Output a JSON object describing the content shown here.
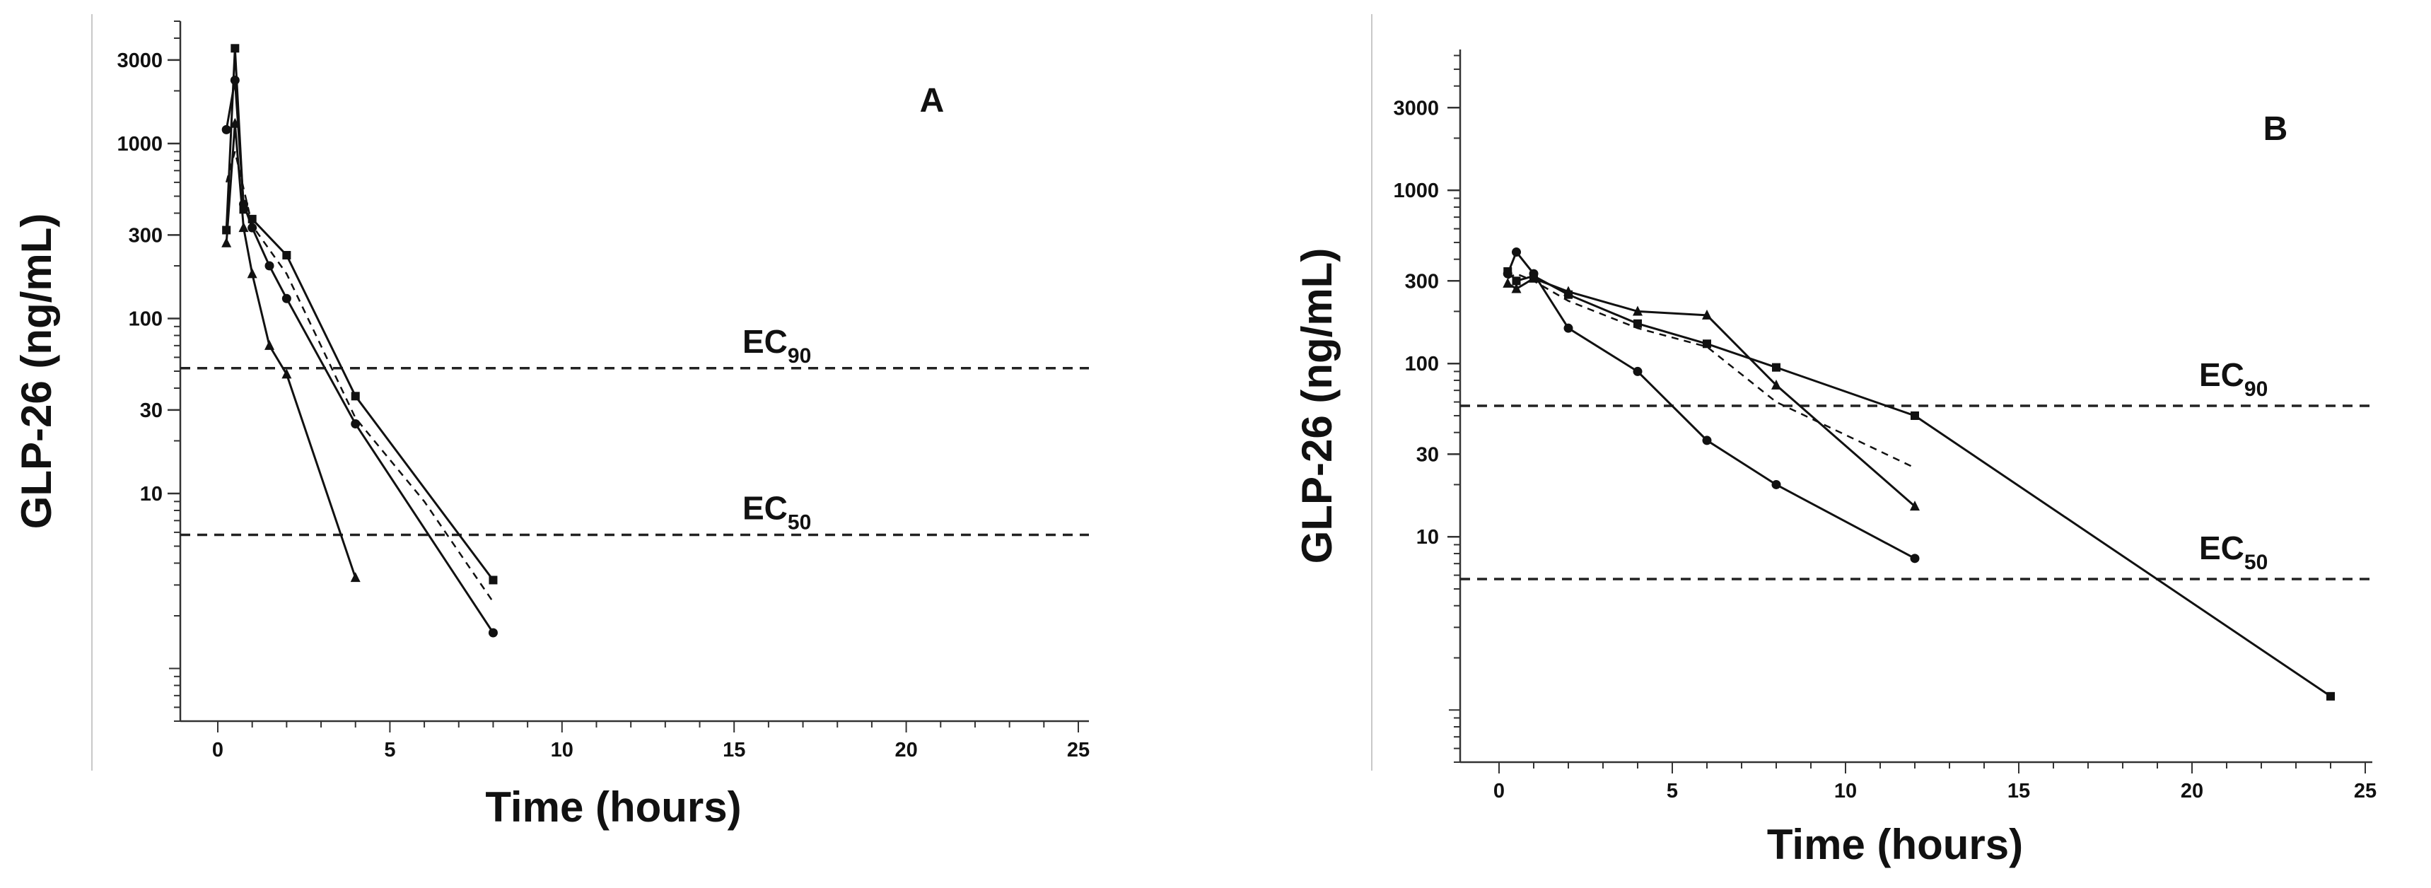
{
  "chart_data": [
    {
      "type": "line",
      "panel_label": "A",
      "xlabel": "Time (hours)",
      "ylabel": "GLP-26 (ng/mL)",
      "x_ticks": [
        0,
        5,
        10,
        15,
        20,
        25
      ],
      "y_ticks": [
        10,
        30,
        100,
        300,
        1000,
        3000
      ],
      "y_scale": "log",
      "xlim": [
        -1,
        25
      ],
      "ylim": [
        0.5,
        5000
      ],
      "grid": false,
      "reference_lines": [
        {
          "label": "EC",
          "subscript": "90",
          "value": 52
        },
        {
          "label": "EC",
          "subscript": "50",
          "value": 5.8
        }
      ],
      "series": [
        {
          "marker": "square",
          "dash": false,
          "points": [
            [
              0.25,
              320
            ],
            [
              0.5,
              3500
            ],
            [
              0.75,
              420
            ],
            [
              1,
              370
            ],
            [
              2,
              230
            ],
            [
              4,
              36
            ],
            [
              8,
              3.2
            ]
          ]
        },
        {
          "marker": "circle",
          "dash": false,
          "points": [
            [
              0.25,
              1200
            ],
            [
              0.5,
              2300
            ],
            [
              0.75,
              450
            ],
            [
              1,
              330
            ],
            [
              1.5,
              200
            ],
            [
              2,
              130
            ],
            [
              4,
              25
            ],
            [
              8,
              1.6
            ]
          ]
        },
        {
          "marker": "triangle",
          "dash": false,
          "points": [
            [
              0.25,
              270
            ],
            [
              0.5,
              1300
            ],
            [
              0.75,
              330
            ],
            [
              1,
              180
            ],
            [
              1.5,
              70
            ],
            [
              2,
              48
            ],
            [
              4,
              3.3
            ]
          ]
        },
        {
          "marker": "none",
          "dash": true,
          "points": [
            [
              0.25,
              600
            ],
            [
              0.5,
              900
            ],
            [
              1,
              340
            ],
            [
              2,
              180
            ],
            [
              4,
              27
            ],
            [
              6,
              9
            ],
            [
              8,
              2.4
            ]
          ]
        }
      ]
    },
    {
      "type": "line",
      "panel_label": "B",
      "xlabel": "Time (hours)",
      "ylabel": "GLP-26 (ng/mL)",
      "x_ticks": [
        0,
        5,
        10,
        15,
        20,
        25
      ],
      "y_ticks": [
        10,
        30,
        100,
        300,
        1000,
        3000
      ],
      "y_scale": "log",
      "xlim": [
        -1,
        25
      ],
      "ylim": [
        0.5,
        6500
      ],
      "grid": false,
      "reference_lines": [
        {
          "label": "EC",
          "subscript": "90",
          "value": 57
        },
        {
          "label": "EC",
          "subscript": "50",
          "value": 5.7
        }
      ],
      "series": [
        {
          "marker": "square",
          "dash": false,
          "points": [
            [
              0.25,
              340
            ],
            [
              0.5,
              300
            ],
            [
              1,
              320
            ],
            [
              2,
              250
            ],
            [
              4,
              170
            ],
            [
              6,
              130
            ],
            [
              8,
              95
            ],
            [
              12,
              50
            ],
            [
              24,
              1.2
            ]
          ]
        },
        {
          "marker": "triangle",
          "dash": false,
          "points": [
            [
              0.25,
              290
            ],
            [
              0.5,
              270
            ],
            [
              1,
              310
            ],
            [
              2,
              260
            ],
            [
              4,
              200
            ],
            [
              6,
              190
            ],
            [
              8,
              75
            ],
            [
              12,
              15
            ]
          ]
        },
        {
          "marker": "circle",
          "dash": false,
          "points": [
            [
              0.25,
              330
            ],
            [
              0.5,
              440
            ],
            [
              1,
              330
            ],
            [
              2,
              160
            ],
            [
              4,
              90
            ],
            [
              6,
              36
            ],
            [
              8,
              20
            ],
            [
              12,
              7.5
            ]
          ]
        },
        {
          "marker": "none",
          "dash": true,
          "points": [
            [
              0.25,
              310
            ],
            [
              0.5,
              330
            ],
            [
              1,
              300
            ],
            [
              2,
              230
            ],
            [
              4,
              160
            ],
            [
              6,
              125
            ],
            [
              8,
              60
            ],
            [
              12,
              25
            ]
          ]
        }
      ]
    }
  ]
}
